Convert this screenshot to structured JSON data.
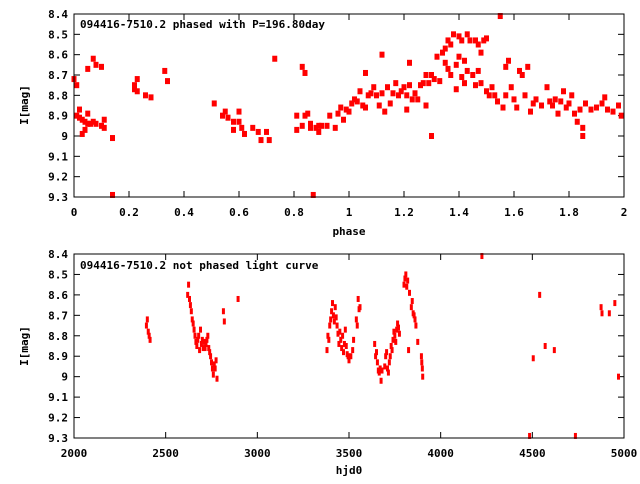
{
  "chart_data": [
    {
      "type": "scatter",
      "title": "094416-7510.2 phased with P=196.80day",
      "xlabel": "phase",
      "ylabel": "I[mag]",
      "xlim": [
        0,
        2
      ],
      "ylim": [
        8.4,
        9.3
      ],
      "y_inverted": true,
      "xticks": [
        "0",
        "0.2",
        "0.4",
        "0.6",
        "0.8",
        "1",
        "1.2",
        "1.4",
        "1.6",
        "1.8",
        "2"
      ],
      "yticks": [
        "8.4",
        "8.5",
        "8.6",
        "8.7",
        "8.8",
        "8.9",
        "9",
        "9.1",
        "9.2",
        "9.3"
      ],
      "color": "#ff0000",
      "points": [
        [
          0,
          8.72
        ],
        [
          0.01,
          8.75
        ],
        [
          0.01,
          8.9
        ],
        [
          0.02,
          8.87
        ],
        [
          0.02,
          8.91
        ],
        [
          0.03,
          8.92
        ],
        [
          0.03,
          8.99
        ],
        [
          0.04,
          8.93
        ],
        [
          0.04,
          8.97
        ],
        [
          0.05,
          8.67
        ],
        [
          0.05,
          8.89
        ],
        [
          0.05,
          8.94
        ],
        [
          0.06,
          8.94
        ],
        [
          0.07,
          8.62
        ],
        [
          0.07,
          8.93
        ],
        [
          0.08,
          8.65
        ],
        [
          0.08,
          8.94
        ],
        [
          0.1,
          8.66
        ],
        [
          0.1,
          8.95
        ],
        [
          0.11,
          8.92
        ],
        [
          0.11,
          8.96
        ],
        [
          0.14,
          9.01
        ],
        [
          0.14,
          9.29
        ],
        [
          0.22,
          8.75
        ],
        [
          0.22,
          8.77
        ],
        [
          0.23,
          8.72
        ],
        [
          0.23,
          8.78
        ],
        [
          0.26,
          8.8
        ],
        [
          0.28,
          8.81
        ],
        [
          0.33,
          8.68
        ],
        [
          0.34,
          8.73
        ],
        [
          0.51,
          8.84
        ],
        [
          0.54,
          8.9
        ],
        [
          0.55,
          8.88
        ],
        [
          0.56,
          8.91
        ],
        [
          0.58,
          8.93
        ],
        [
          0.58,
          8.97
        ],
        [
          0.6,
          8.88
        ],
        [
          0.6,
          8.93
        ],
        [
          0.61,
          8.96
        ],
        [
          0.62,
          8.99
        ],
        [
          0.65,
          8.96
        ],
        [
          0.67,
          8.98
        ],
        [
          0.68,
          9.02
        ],
        [
          0.7,
          8.98
        ],
        [
          0.71,
          9.02
        ],
        [
          0.73,
          8.62
        ],
        [
          0.81,
          8.9
        ],
        [
          0.81,
          8.97
        ],
        [
          0.83,
          8.95
        ],
        [
          0.83,
          8.66
        ],
        [
          0.84,
          8.69
        ],
        [
          0.84,
          8.9
        ],
        [
          0.85,
          8.89
        ],
        [
          0.86,
          8.96
        ],
        [
          0.86,
          8.94
        ],
        [
          0.87,
          9.29
        ],
        [
          0.88,
          8.96
        ],
        [
          0.89,
          8.95
        ],
        [
          0.89,
          8.98
        ],
        [
          0.9,
          8.95
        ],
        [
          0.92,
          8.95
        ],
        [
          0.93,
          8.9
        ],
        [
          0.95,
          8.96
        ],
        [
          0.96,
          8.89
        ],
        [
          0.97,
          8.86
        ],
        [
          0.98,
          8.92
        ],
        [
          0.99,
          8.87
        ],
        [
          1.0,
          8.88
        ],
        [
          1.01,
          8.84
        ],
        [
          1.02,
          8.82
        ],
        [
          1.03,
          8.83
        ],
        [
          1.04,
          8.78
        ],
        [
          1.05,
          8.85
        ],
        [
          1.06,
          8.69
        ],
        [
          1.06,
          8.86
        ],
        [
          1.07,
          8.8
        ],
        [
          1.08,
          8.79
        ],
        [
          1.09,
          8.76
        ],
        [
          1.1,
          8.8
        ],
        [
          1.11,
          8.85
        ],
        [
          1.12,
          8.6
        ],
        [
          1.12,
          8.79
        ],
        [
          1.13,
          8.88
        ],
        [
          1.14,
          8.76
        ],
        [
          1.15,
          8.84
        ],
        [
          1.16,
          8.79
        ],
        [
          1.17,
          8.74
        ],
        [
          1.18,
          8.8
        ],
        [
          1.19,
          8.78
        ],
        [
          1.2,
          8.76
        ],
        [
          1.21,
          8.87
        ],
        [
          1.21,
          8.8
        ],
        [
          1.22,
          8.64
        ],
        [
          1.22,
          8.75
        ],
        [
          1.23,
          8.82
        ],
        [
          1.24,
          8.79
        ],
        [
          1.25,
          8.82
        ],
        [
          1.26,
          8.75
        ],
        [
          1.27,
          8.74
        ],
        [
          1.28,
          8.85
        ],
        [
          1.28,
          8.7
        ],
        [
          1.29,
          8.74
        ],
        [
          1.3,
          9.0
        ],
        [
          1.3,
          8.7
        ],
        [
          1.31,
          8.72
        ],
        [
          1.32,
          8.61
        ],
        [
          1.33,
          8.73
        ],
        [
          1.34,
          8.59
        ],
        [
          1.35,
          8.64
        ],
        [
          1.35,
          8.57
        ],
        [
          1.36,
          8.53
        ],
        [
          1.36,
          8.67
        ],
        [
          1.37,
          8.7
        ],
        [
          1.37,
          8.55
        ],
        [
          1.38,
          8.5
        ],
        [
          1.39,
          8.65
        ],
        [
          1.39,
          8.77
        ],
        [
          1.4,
          8.51
        ],
        [
          1.4,
          8.61
        ],
        [
          1.41,
          8.53
        ],
        [
          1.41,
          8.71
        ],
        [
          1.42,
          8.63
        ],
        [
          1.42,
          8.74
        ],
        [
          1.43,
          8.5
        ],
        [
          1.43,
          8.68
        ],
        [
          1.44,
          8.53
        ],
        [
          1.45,
          8.7
        ],
        [
          1.46,
          8.53
        ],
        [
          1.46,
          8.75
        ],
        [
          1.47,
          8.55
        ],
        [
          1.47,
          8.68
        ],
        [
          1.48,
          8.59
        ],
        [
          1.48,
          8.74
        ],
        [
          1.49,
          8.53
        ],
        [
          1.5,
          8.52
        ],
        [
          1.5,
          8.78
        ],
        [
          1.51,
          8.8
        ],
        [
          1.52,
          8.76
        ],
        [
          1.53,
          8.8
        ],
        [
          1.54,
          8.83
        ],
        [
          1.55,
          8.41
        ],
        [
          1.56,
          8.86
        ],
        [
          1.57,
          8.66
        ],
        [
          1.57,
          8.8
        ],
        [
          1.58,
          8.63
        ],
        [
          1.59,
          8.76
        ],
        [
          1.6,
          8.82
        ],
        [
          1.61,
          8.86
        ],
        [
          1.62,
          8.68
        ],
        [
          1.63,
          8.7
        ],
        [
          1.64,
          8.8
        ],
        [
          1.65,
          8.66
        ],
        [
          1.66,
          8.88
        ],
        [
          1.67,
          8.84
        ],
        [
          1.68,
          8.82
        ],
        [
          1.7,
          8.85
        ],
        [
          1.72,
          8.76
        ],
        [
          1.73,
          8.83
        ],
        [
          1.74,
          8.85
        ],
        [
          1.75,
          8.82
        ],
        [
          1.76,
          8.89
        ],
        [
          1.77,
          8.83
        ],
        [
          1.78,
          8.78
        ],
        [
          1.79,
          8.86
        ],
        [
          1.8,
          8.84
        ],
        [
          1.81,
          8.8
        ],
        [
          1.82,
          8.89
        ],
        [
          1.83,
          8.93
        ],
        [
          1.84,
          8.87
        ],
        [
          1.85,
          8.96
        ],
        [
          1.85,
          9.0
        ],
        [
          1.86,
          8.84
        ],
        [
          1.88,
          8.87
        ],
        [
          1.9,
          8.86
        ],
        [
          1.92,
          8.84
        ],
        [
          1.93,
          8.81
        ],
        [
          1.94,
          8.87
        ],
        [
          1.96,
          8.88
        ],
        [
          1.98,
          8.85
        ],
        [
          1.99,
          8.9
        ]
      ]
    },
    {
      "type": "scatter",
      "title": "094416-7510.2 not phased light curve",
      "xlabel": "hjd0",
      "ylabel": "I[mag]",
      "xlim": [
        2000,
        5000
      ],
      "ylim": [
        8.4,
        9.3
      ],
      "y_inverted": true,
      "xticks": [
        "2000",
        "2500",
        "3000",
        "3500",
        "4000",
        "4500",
        "5000"
      ],
      "yticks": [
        "8.4",
        "8.5",
        "8.6",
        "8.7",
        "8.8",
        "8.9",
        "9",
        "9.1",
        "9.2",
        "9.3"
      ],
      "color": "#ff0000",
      "points": [
        [
          2395,
          8.75
        ],
        [
          2400,
          8.72
        ],
        [
          2405,
          8.78
        ],
        [
          2410,
          8.8
        ],
        [
          2415,
          8.82
        ],
        [
          2620,
          8.6
        ],
        [
          2625,
          8.55
        ],
        [
          2630,
          8.62
        ],
        [
          2635,
          8.65
        ],
        [
          2640,
          8.68
        ],
        [
          2645,
          8.72
        ],
        [
          2650,
          8.74
        ],
        [
          2655,
          8.77
        ],
        [
          2660,
          8.8
        ],
        [
          2665,
          8.83
        ],
        [
          2670,
          8.85
        ],
        [
          2675,
          8.82
        ],
        [
          2680,
          8.8
        ],
        [
          2685,
          8.87
        ],
        [
          2690,
          8.77
        ],
        [
          2695,
          8.84
        ],
        [
          2700,
          8.82
        ],
        [
          2705,
          8.86
        ],
        [
          2710,
          8.83
        ],
        [
          2715,
          8.86
        ],
        [
          2720,
          8.84
        ],
        [
          2725,
          8.82
        ],
        [
          2730,
          8.8
        ],
        [
          2735,
          8.86
        ],
        [
          2740,
          8.88
        ],
        [
          2745,
          8.9
        ],
        [
          2750,
          8.93
        ],
        [
          2755,
          8.96
        ],
        [
          2760,
          8.99
        ],
        [
          2765,
          8.94
        ],
        [
          2770,
          8.96
        ],
        [
          2775,
          8.92
        ],
        [
          2780,
          9.01
        ],
        [
          2815,
          8.68
        ],
        [
          2820,
          8.73
        ],
        [
          2895,
          8.62
        ],
        [
          3380,
          8.87
        ],
        [
          3385,
          8.8
        ],
        [
          3390,
          8.82
        ],
        [
          3395,
          8.75
        ],
        [
          3400,
          8.72
        ],
        [
          3405,
          8.68
        ],
        [
          3410,
          8.64
        ],
        [
          3415,
          8.7
        ],
        [
          3420,
          8.73
        ],
        [
          3425,
          8.66
        ],
        [
          3430,
          8.71
        ],
        [
          3435,
          8.75
        ],
        [
          3440,
          8.79
        ],
        [
          3445,
          8.84
        ],
        [
          3450,
          8.78
        ],
        [
          3455,
          8.82
        ],
        [
          3460,
          8.86
        ],
        [
          3465,
          8.8
        ],
        [
          3470,
          8.88
        ],
        [
          3475,
          8.84
        ],
        [
          3480,
          8.77
        ],
        [
          3485,
          8.85
        ],
        [
          3490,
          8.89
        ],
        [
          3495,
          8.9
        ],
        [
          3500,
          8.92
        ],
        [
          3510,
          8.9
        ],
        [
          3520,
          8.87
        ],
        [
          3525,
          8.82
        ],
        [
          3540,
          8.72
        ],
        [
          3545,
          8.75
        ],
        [
          3550,
          8.62
        ],
        [
          3555,
          8.67
        ],
        [
          3560,
          8.66
        ],
        [
          3640,
          8.84
        ],
        [
          3645,
          8.9
        ],
        [
          3650,
          8.88
        ],
        [
          3655,
          8.93
        ],
        [
          3660,
          8.97
        ],
        [
          3665,
          8.98
        ],
        [
          3670,
          8.96
        ],
        [
          3675,
          9.02
        ],
        [
          3680,
          8.97
        ],
        [
          3695,
          8.95
        ],
        [
          3700,
          8.9
        ],
        [
          3705,
          8.88
        ],
        [
          3710,
          8.96
        ],
        [
          3715,
          8.98
        ],
        [
          3720,
          8.93
        ],
        [
          3725,
          8.9
        ],
        [
          3730,
          8.85
        ],
        [
          3735,
          8.87
        ],
        [
          3740,
          8.82
        ],
        [
          3745,
          8.78
        ],
        [
          3750,
          8.8
        ],
        [
          3755,
          8.83
        ],
        [
          3760,
          8.77
        ],
        [
          3765,
          8.74
        ],
        [
          3770,
          8.76
        ],
        [
          3775,
          8.79
        ],
        [
          3800,
          8.55
        ],
        [
          3805,
          8.52
        ],
        [
          3810,
          8.5
        ],
        [
          3815,
          8.56
        ],
        [
          3820,
          8.53
        ],
        [
          3825,
          8.87
        ],
        [
          3830,
          8.59
        ],
        [
          3840,
          8.66
        ],
        [
          3845,
          8.63
        ],
        [
          3850,
          8.69
        ],
        [
          3855,
          8.7
        ],
        [
          3860,
          8.72
        ],
        [
          3865,
          8.75
        ],
        [
          3875,
          8.83
        ],
        [
          3895,
          8.9
        ],
        [
          3897,
          8.93
        ],
        [
          3900,
          8.96
        ],
        [
          3902,
          9.0
        ],
        [
          4225,
          8.41
        ],
        [
          4485,
          9.29
        ],
        [
          4505,
          8.91
        ],
        [
          4540,
          8.6
        ],
        [
          4570,
          8.85
        ],
        [
          4620,
          8.87
        ],
        [
          4735,
          9.29
        ],
        [
          4875,
          8.66
        ],
        [
          4880,
          8.69
        ],
        [
          4920,
          8.69
        ],
        [
          4950,
          8.64
        ],
        [
          4970,
          9.0
        ]
      ]
    }
  ]
}
